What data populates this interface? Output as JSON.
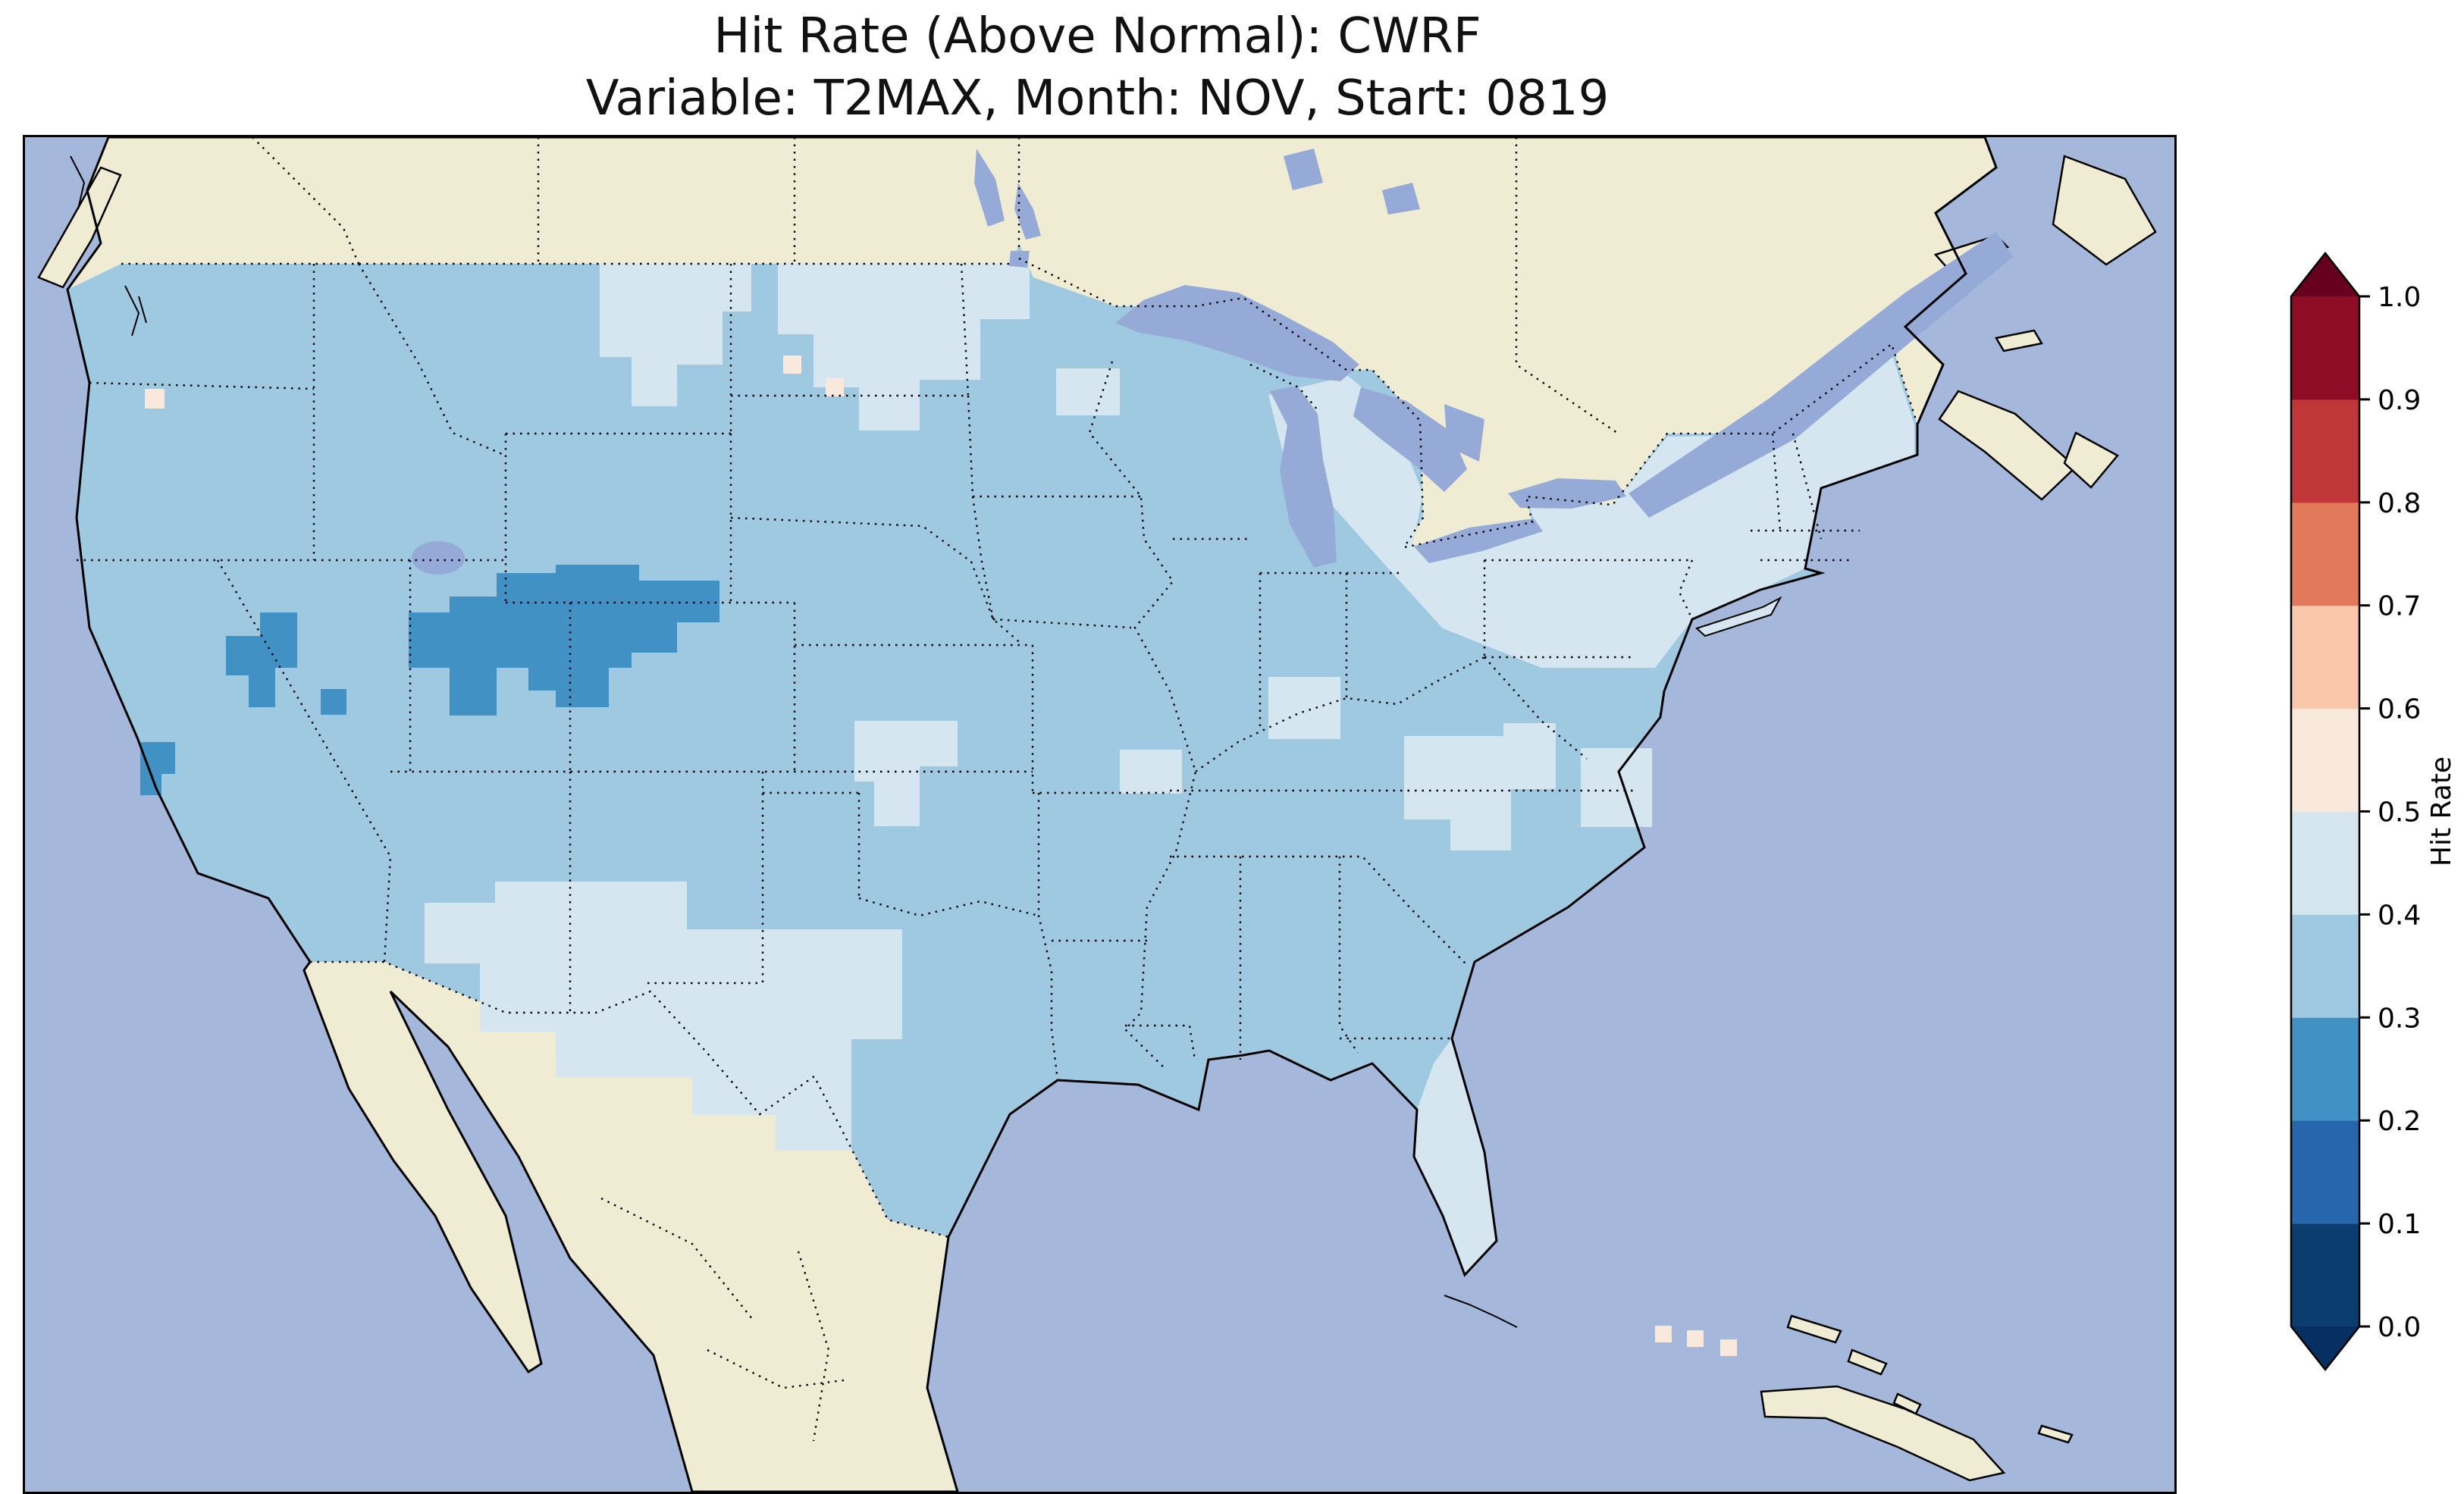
{
  "title": {
    "line1": "Hit Rate (Above Normal): CWRF",
    "line2": "Variable: T2MAX, Month: NOV, Start: 0819"
  },
  "colorbar": {
    "label": "Hit Rate",
    "ticks": [
      "0.0",
      "0.1",
      "0.2",
      "0.3",
      "0.4",
      "0.5",
      "0.6",
      "0.7",
      "0.8",
      "0.9",
      "1.0"
    ],
    "band_colors_bottom_to_top": [
      "#0b3d70",
      "#2766ac",
      "#4191c5",
      "#9fc9e0",
      "#d5e6f1",
      "#f9e9dc",
      "#f9c7ab",
      "#e2795b",
      "#c13639",
      "#8e0c26"
    ],
    "under_color": "#053061",
    "over_color": "#67001f"
  },
  "map": {
    "ocean_color": "#a5b8db",
    "land_color": "#f0ecd4",
    "lake_color": "#95aad6",
    "border_color": "#000000"
  },
  "chart_data": {
    "type": "heatmap",
    "title": "Hit Rate (Above Normal): CWRF",
    "subtitle": "Variable: T2MAX, Month: NOV, Start: 0819",
    "colorbar_label": "Hit Rate",
    "colorbar_ticks": [
      0.0,
      0.1,
      0.2,
      0.3,
      0.4,
      0.5,
      0.6,
      0.7,
      0.8,
      0.9,
      1.0
    ],
    "colormap": "diverging blue-white-red (RdBu reversed), discrete 0.1 bins, extended triangles at both ends",
    "legend_position": "right vertical colorbar",
    "map_extent": "Continental United States with surrounding Canada, Mexico, Pacific, Gulf of Mexico and Atlantic",
    "observations": [
      {
        "region": "Most of the continental US",
        "hit_rate_range": [
          0.3,
          0.4
        ]
      },
      {
        "region": "Wyoming / northern Utah / northwest Colorado patch",
        "hit_rate_range": [
          0.2,
          0.3
        ]
      },
      {
        "region": "Northeast Nevada patch",
        "hit_rate_range": [
          0.2,
          0.3
        ]
      },
      {
        "region": "Southern California coastal patch",
        "hit_rate_range": [
          0.2,
          0.3
        ]
      },
      {
        "region": "North-central Montana and western Dakotas",
        "hit_rate_range": [
          0.4,
          0.5
        ]
      },
      {
        "region": "New Mexico, Texas panhandle and west Texas",
        "hit_rate_range": [
          0.4,
          0.5
        ]
      },
      {
        "region": "Great Lakes region, Michigan, New York, Pennsylvania, New England",
        "hit_rate_range": [
          0.4,
          0.5
        ]
      },
      {
        "region": "Florida peninsula",
        "hit_rate_range": [
          0.4,
          0.5
        ]
      },
      {
        "region": "Central Kansas/Nebraska and Ohio Valley / Appalachian spots",
        "hit_rate_range": [
          0.4,
          0.5
        ]
      },
      {
        "region": "Tiny spots near Puget Sound, Montana and south Florida",
        "hit_rate_range": [
          0.5,
          0.6
        ]
      }
    ]
  }
}
